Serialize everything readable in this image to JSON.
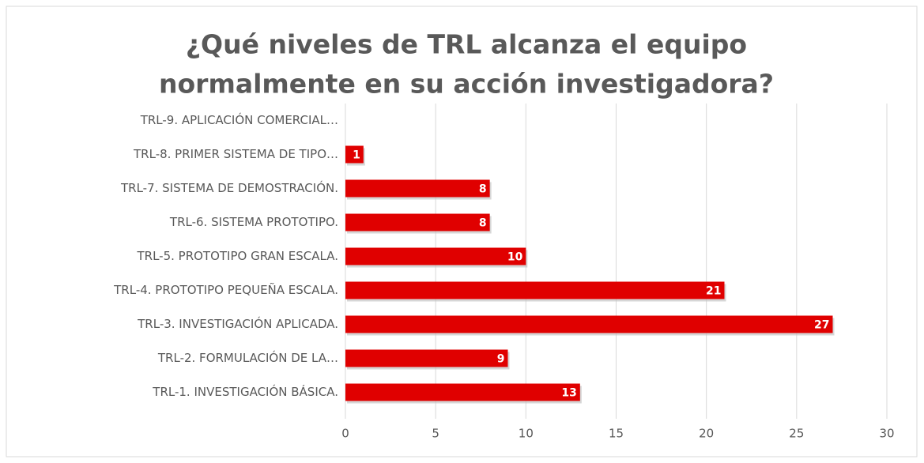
{
  "chart_data": {
    "type": "bar",
    "orientation": "horizontal",
    "title": [
      "¿Qué niveles de TRL alcanza el equipo",
      "normalmente  en su acción investigadora?"
    ],
    "categories": [
      "TRL-1. INVESTIGACIÓN BÁSICA.",
      "TRL-2. FORMULACIÓN DE LA…",
      "TRL-3. INVESTIGACIÓN APLICADA.",
      "TRL-4. PROTOTIPO PEQUEÑA ESCALA.",
      "TRL-5. PROTOTIPO GRAN ESCALA.",
      "TRL-6. SISTEMA PROTOTIPO.",
      "TRL-7. SISTEMA DE DEMOSTRACIÓN.",
      "TRL-8. PRIMER SISTEMA DE TIPO…",
      "TRL-9. APLICACIÓN COMERCIAL…"
    ],
    "values": [
      13,
      9,
      27,
      21,
      10,
      8,
      8,
      1,
      0
    ],
    "value_labels": [
      "13",
      "9",
      "27",
      "21",
      "10",
      "8",
      "8",
      "1",
      null
    ],
    "color": "#e00000",
    "xlim": [
      0,
      30
    ],
    "xticks": [
      0,
      5,
      10,
      15,
      20,
      25,
      30
    ],
    "grid": true
  }
}
